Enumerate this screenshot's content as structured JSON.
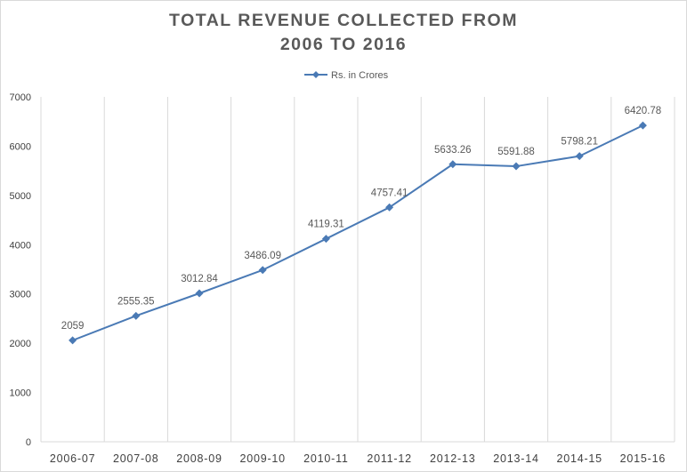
{
  "chart_data": {
    "type": "line",
    "title_line1": "TOTAL REVENUE COLLECTED FROM",
    "title_line2": "2006 TO 2016",
    "xlabel": "",
    "ylabel": "",
    "categories": [
      "2006-07",
      "2007-08",
      "2008-09",
      "2009-10",
      "2010-11",
      "2011-12",
      "2012-13",
      "2013-14",
      "2014-15",
      "2015-16"
    ],
    "series": [
      {
        "name": "Rs. in Crores",
        "values": [
          2059,
          2555.35,
          3012.84,
          3486.09,
          4119.31,
          4757.41,
          5633.26,
          5591.88,
          5798.21,
          6420.78
        ],
        "labels": [
          "2059",
          "2555.35",
          "3012.84",
          "3486.09",
          "4119.31",
          "4757.41",
          "5633.26",
          "5591.88",
          "5798.21",
          "6420.78"
        ]
      }
    ],
    "ylim": [
      0,
      7000
    ],
    "yticks": [
      0,
      1000,
      2000,
      3000,
      4000,
      5000,
      6000,
      7000
    ],
    "ytick_labels": [
      "0",
      "1000",
      "2000",
      "3000",
      "4000",
      "5000",
      "6000",
      "7000"
    ],
    "vertical_gridlines": true,
    "horizontal_gridlines": false,
    "legend_position": "top-center",
    "colors": {
      "series": "#4a7ab5",
      "grid": "#d9d9d9",
      "title": "#595959"
    }
  }
}
